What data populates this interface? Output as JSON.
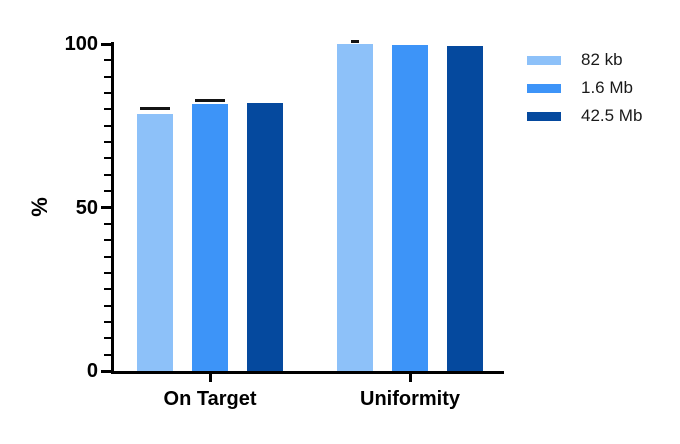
{
  "figure": {
    "background": "#ffffff",
    "axis_color": "#000000",
    "text_color": "#000000"
  },
  "chart_data": {
    "type": "bar",
    "title": "",
    "xlabel": "",
    "ylabel": "%",
    "categories": [
      "On Target",
      "Uniformity"
    ],
    "series": [
      {
        "name": "82 kb",
        "color": "#8DC1F9",
        "values": [
          78.5,
          100.0
        ],
        "errors": [
          1.7,
          0.5
        ]
      },
      {
        "name": "1.6 Mb",
        "color": "#3D94F8",
        "values": [
          81.5,
          99.8
        ],
        "errors": [
          1.2,
          0
        ]
      },
      {
        "name": "42.5 Mb",
        "color": "#05499E",
        "values": [
          81.9,
          99.3
        ],
        "errors": [
          0,
          0
        ]
      }
    ],
    "ylim": [
      0,
      100
    ],
    "yticks": [
      0,
      50,
      100
    ],
    "minor_tick_step": 5,
    "grid": false,
    "error_bars": "caps only, black",
    "legend_position": "right"
  }
}
